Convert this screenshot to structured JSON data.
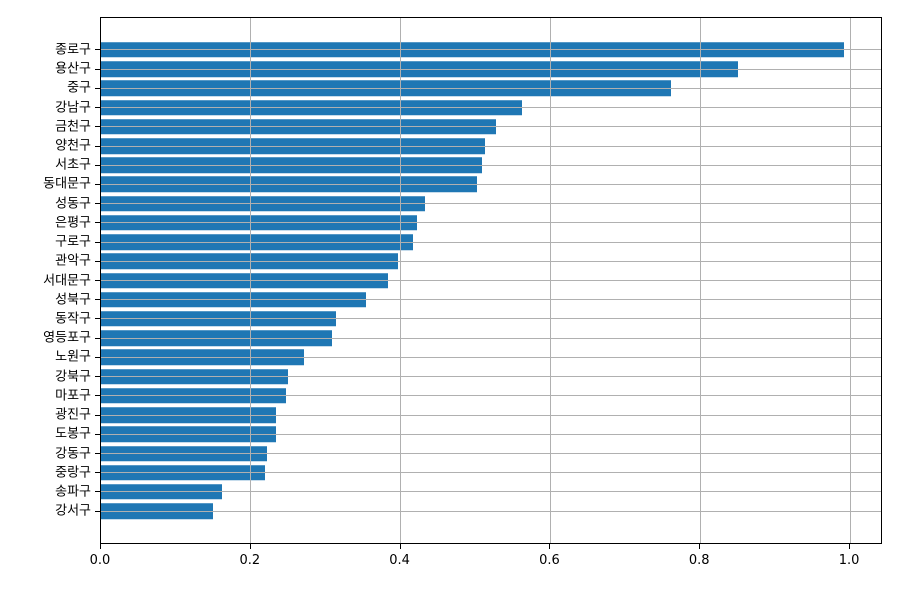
{
  "chart_data": {
    "type": "bar",
    "orientation": "horizontal",
    "title": "",
    "xlabel": "",
    "ylabel": "",
    "grid": true,
    "legend": null,
    "bar_color": "#1f77b4",
    "grid_color": "#b0b0b0",
    "xlim": [
      0,
      1.044
    ],
    "categories": [
      "종로구",
      "용산구",
      "중구",
      "강남구",
      "금천구",
      "양천구",
      "서초구",
      "동대문구",
      "성동구",
      "은평구",
      "구로구",
      "관악구",
      "서대문구",
      "성북구",
      "동작구",
      "영등포구",
      "노원구",
      "강북구",
      "마포구",
      "광진구",
      "도봉구",
      "강동구",
      "중랑구",
      "송파구",
      "강서구"
    ],
    "values": [
      0.992,
      0.85,
      0.761,
      0.562,
      0.528,
      0.512,
      0.508,
      0.502,
      0.433,
      0.422,
      0.416,
      0.397,
      0.383,
      0.354,
      0.314,
      0.308,
      0.271,
      0.25,
      0.247,
      0.234,
      0.233,
      0.221,
      0.219,
      0.161,
      0.15
    ],
    "x_ticks": [
      {
        "value": 0.0,
        "label": "0.0"
      },
      {
        "value": 0.2,
        "label": "0.2"
      },
      {
        "value": 0.4,
        "label": "0.4"
      },
      {
        "value": 0.6,
        "label": "0.6"
      },
      {
        "value": 0.8,
        "label": "0.8"
      },
      {
        "value": 1.0,
        "label": "1.0"
      }
    ]
  }
}
